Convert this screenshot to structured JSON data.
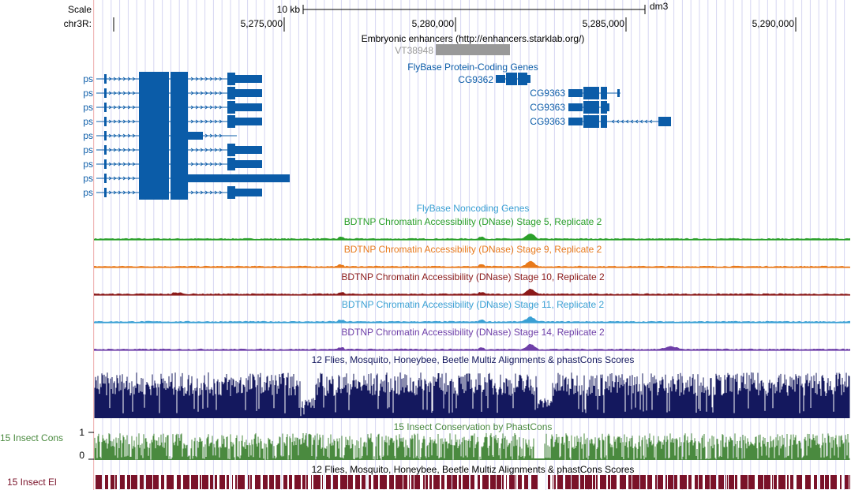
{
  "scale_row": {
    "label": "Scale",
    "scale_text": "10 kb",
    "assembly": "dm3"
  },
  "position_row": {
    "chrom_label": "chr3R:",
    "ticks": [
      {
        "pos": 5275000,
        "label": "5,275,000"
      },
      {
        "pos": 5280000,
        "label": "5,280,000"
      },
      {
        "pos": 5285000,
        "label": "5,285,000"
      },
      {
        "pos": 5290000,
        "label": "5,290,000"
      }
    ]
  },
  "colors": {
    "gene_blue": "#0b5ca8",
    "enhancer_gray": "#999999",
    "stage5_green": "#2ba02b",
    "stage9_orange": "#e87a1c",
    "stage10_darkred": "#8b1a1a",
    "stage11_lightblue": "#3aa0d4",
    "stage14_purple": "#6e3fa8",
    "multiz_navy": "#14185e",
    "phastcons_green": "#4a8a3f",
    "elements_maroon": "#7a1229",
    "grid_blue": "#d6d6f2",
    "sidebar_pink": "#f0b9b9"
  },
  "tracks": {
    "enhancers": {
      "title": "Embryonic enhancers (http://enhancers.starklab.org/)",
      "items": [
        {
          "name": "VT38948"
        }
      ]
    },
    "flybase_coding": {
      "title": "FlyBase Protein-Coding Genes",
      "ps_label": "ps",
      "ps_count": 9,
      "cg9362_label": "CG9362",
      "cg9363_label": "CG9363",
      "cg9363_count": 3
    },
    "flybase_noncoding": {
      "title": "FlyBase Noncoding Genes"
    },
    "dnase": [
      {
        "title": "BDTNP Chromatin Accessibility (DNase) Stage 5, Replicate 2"
      },
      {
        "title": "BDTNP Chromatin Accessibility (DNase) Stage 9, Replicate 2"
      },
      {
        "title": "BDTNP Chromatin Accessibility (DNase) Stage 10, Replicate 2"
      },
      {
        "title": "BDTNP Chromatin Accessibility (DNase) Stage 11, Replicate 2"
      },
      {
        "title": "BDTNP Chromatin Accessibility (DNase) Stage 14, Replicate 2"
      }
    ],
    "multiz": {
      "title": "12 Flies, Mosquito, Honeybee, Beetle Multiz Alignments & phastCons Scores"
    },
    "phastcons": {
      "title": "15 Insect Conservation by PhastCons",
      "side_label": "15 Insect Cons",
      "axis_max": "1",
      "axis_min": "0"
    },
    "elements": {
      "title": "12 Flies, Mosquito, Honeybee, Beetle Multiz Alignments & phastCons Scores",
      "side_label": "15 Insect El"
    }
  }
}
